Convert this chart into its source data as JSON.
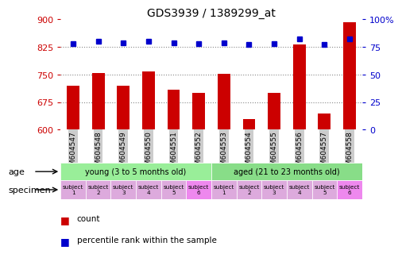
{
  "title": "GDS3939 / 1389299_at",
  "categories": [
    "GSM604547",
    "GSM604548",
    "GSM604549",
    "GSM604550",
    "GSM604551",
    "GSM604552",
    "GSM604553",
    "GSM604554",
    "GSM604555",
    "GSM604556",
    "GSM604557",
    "GSM604558"
  ],
  "count_values": [
    720,
    755,
    720,
    758,
    708,
    700,
    752,
    628,
    700,
    832,
    645,
    893
  ],
  "percentile_values": [
    78,
    80,
    79,
    80,
    79,
    78,
    79,
    77,
    78,
    82,
    77,
    82
  ],
  "ylim_left": [
    600,
    900
  ],
  "ylim_right": [
    0,
    100
  ],
  "yticks_left": [
    600,
    675,
    750,
    825,
    900
  ],
  "yticks_right": [
    0,
    25,
    50,
    75,
    100
  ],
  "bar_color": "#cc0000",
  "dot_color": "#0000cc",
  "age_groups": [
    {
      "label": "young (3 to 5 months old)",
      "start": 0,
      "end": 6,
      "color": "#99ee99"
    },
    {
      "label": "aged (21 to 23 months old)",
      "start": 6,
      "end": 12,
      "color": "#88dd88"
    }
  ],
  "specimen_colors": [
    "#ddaadd",
    "#ddaadd",
    "#ddaadd",
    "#ddaadd",
    "#ddaadd",
    "#ee88ee",
    "#ddaadd",
    "#ddaadd",
    "#ddaadd",
    "#ddaadd",
    "#ddaadd",
    "#ee88ee"
  ],
  "specimen_labels": [
    "subject\n1",
    "subject\n2",
    "subject\n3",
    "subject\n4",
    "subject\n5",
    "subject\n6",
    "subject\n1",
    "subject\n2",
    "subject\n3",
    "subject\n4",
    "subject\n5",
    "subject\n6"
  ],
  "tick_color_left": "#cc0000",
  "tick_color_right": "#0000cc",
  "dotted_line_color": "#888888",
  "background_color": "#ffffff",
  "xticklabel_bg": "#cccccc"
}
